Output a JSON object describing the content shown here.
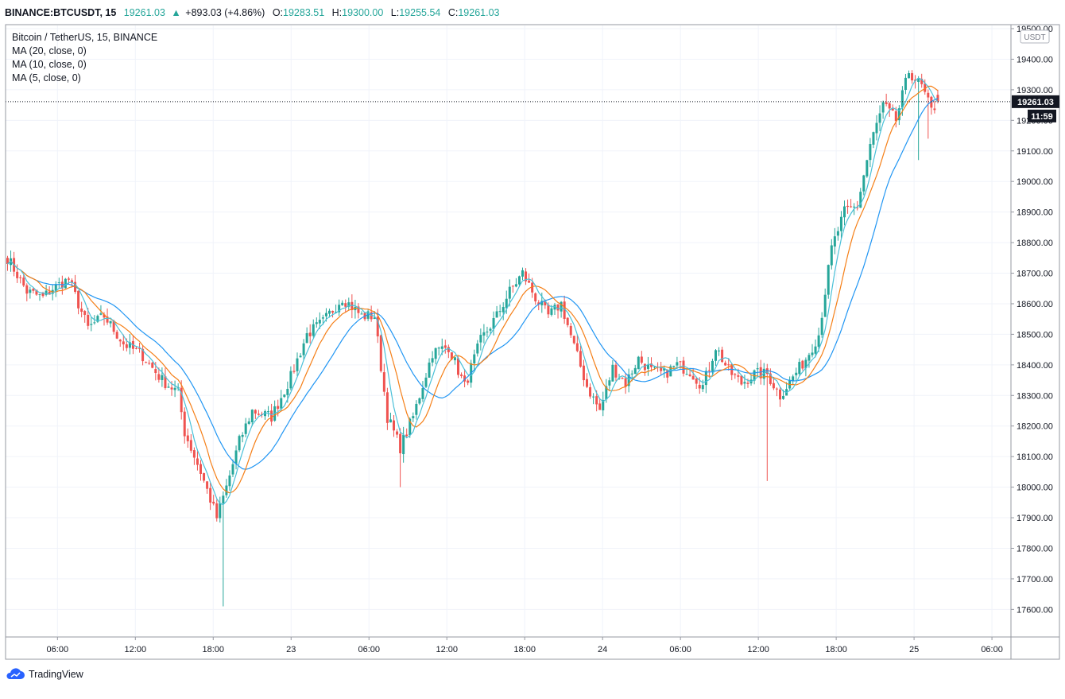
{
  "header": {
    "symbol": "BINANCE:BTCUSDT, 15",
    "last": "19261.03",
    "change": "+893.03 (+4.86%)",
    "o_label": "O:",
    "o_value": "19283.51",
    "h_label": "H:",
    "h_value": "19300.00",
    "l_label": "L:",
    "l_value": "19255.54",
    "c_label": "C:",
    "c_value": "19261.03"
  },
  "legend": {
    "title": "Bitcoin / TetherUS, 15, BINANCE",
    "ma20": "MA (20, close, 0)",
    "ma10": "MA (10, close, 0)",
    "ma5": "MA (5, close, 0)"
  },
  "price_axis": {
    "currency": "USDT",
    "last_price_label": "19261.03",
    "countdown_label": "11:59"
  },
  "footer": {
    "brand": "TradingView"
  },
  "colors": {
    "up": "#26a69a",
    "down": "#ef5350",
    "ma20": "#2196f3",
    "ma10": "#f57f17",
    "ma5": "#4ac0d8",
    "grid": "#f0f3fa"
  },
  "chart_data": {
    "type": "candlestick",
    "interval_minutes": 15,
    "ylim": [
      17500,
      19500
    ],
    "y_ticks": [
      17600,
      17700,
      17800,
      17900,
      18000,
      18100,
      18200,
      18300,
      18400,
      18500,
      18600,
      18700,
      18800,
      18900,
      19000,
      19100,
      19200,
      19300,
      19400,
      19500
    ],
    "x_ticks": [
      {
        "label": "06:00",
        "hour": 6
      },
      {
        "label": "12:00",
        "hour": 12
      },
      {
        "label": "18:00",
        "hour": 18
      },
      {
        "label": "23",
        "hour": 24
      },
      {
        "label": "06:00",
        "hour": 30
      },
      {
        "label": "12:00",
        "hour": 36
      },
      {
        "label": "18:00",
        "hour": 42
      },
      {
        "label": "24",
        "hour": 48
      },
      {
        "label": "06:00",
        "hour": 54
      },
      {
        "label": "12:00",
        "hour": 60
      },
      {
        "label": "18:00",
        "hour": 66
      },
      {
        "label": "25",
        "hour": 72
      },
      {
        "label": "06:00",
        "hour": 78
      }
    ],
    "grid": true,
    "start_hour": 2,
    "anchors": [
      [
        0,
        18750
      ],
      [
        6,
        18640
      ],
      [
        11,
        18620
      ],
      [
        14,
        18650
      ],
      [
        19,
        18680
      ],
      [
        25,
        18520
      ],
      [
        30,
        18560
      ],
      [
        36,
        18470
      ],
      [
        42,
        18430
      ],
      [
        48,
        18350
      ],
      [
        53,
        18310
      ],
      [
        55,
        18180
      ],
      [
        60,
        18050
      ],
      [
        65,
        17900
      ],
      [
        68,
        18000
      ],
      [
        72,
        18150
      ],
      [
        76,
        18250
      ],
      [
        82,
        18230
      ],
      [
        88,
        18360
      ],
      [
        93,
        18500
      ],
      [
        98,
        18540
      ],
      [
        104,
        18620
      ],
      [
        110,
        18560
      ],
      [
        114,
        18560
      ],
      [
        118,
        18230
      ],
      [
        122,
        18130
      ],
      [
        126,
        18230
      ],
      [
        132,
        18440
      ],
      [
        137,
        18460
      ],
      [
        142,
        18330
      ],
      [
        147,
        18480
      ],
      [
        152,
        18560
      ],
      [
        156,
        18640
      ],
      [
        160,
        18700
      ],
      [
        164,
        18620
      ],
      [
        168,
        18560
      ],
      [
        172,
        18600
      ],
      [
        176,
        18460
      ],
      [
        180,
        18330
      ],
      [
        184,
        18250
      ],
      [
        188,
        18390
      ],
      [
        192,
        18340
      ],
      [
        196,
        18420
      ],
      [
        200,
        18380
      ],
      [
        204,
        18370
      ],
      [
        208,
        18400
      ],
      [
        212,
        18380
      ],
      [
        216,
        18330
      ],
      [
        220,
        18460
      ],
      [
        224,
        18380
      ],
      [
        228,
        18340
      ],
      [
        232,
        18370
      ],
      [
        236,
        18370
      ],
      [
        240,
        18300
      ],
      [
        244,
        18360
      ],
      [
        248,
        18420
      ],
      [
        252,
        18500
      ],
      [
        256,
        18780
      ],
      [
        260,
        18900
      ],
      [
        264,
        18920
      ],
      [
        268,
        19120
      ],
      [
        272,
        19250
      ],
      [
        276,
        19200
      ],
      [
        280,
        19360
      ],
      [
        284,
        19310
      ],
      [
        287,
        19230
      ],
      [
        289,
        19261
      ]
    ],
    "last_ohlc": {
      "open": 19283.51,
      "high": 19300.0,
      "low": 19255.54,
      "close": 19261.03
    }
  }
}
